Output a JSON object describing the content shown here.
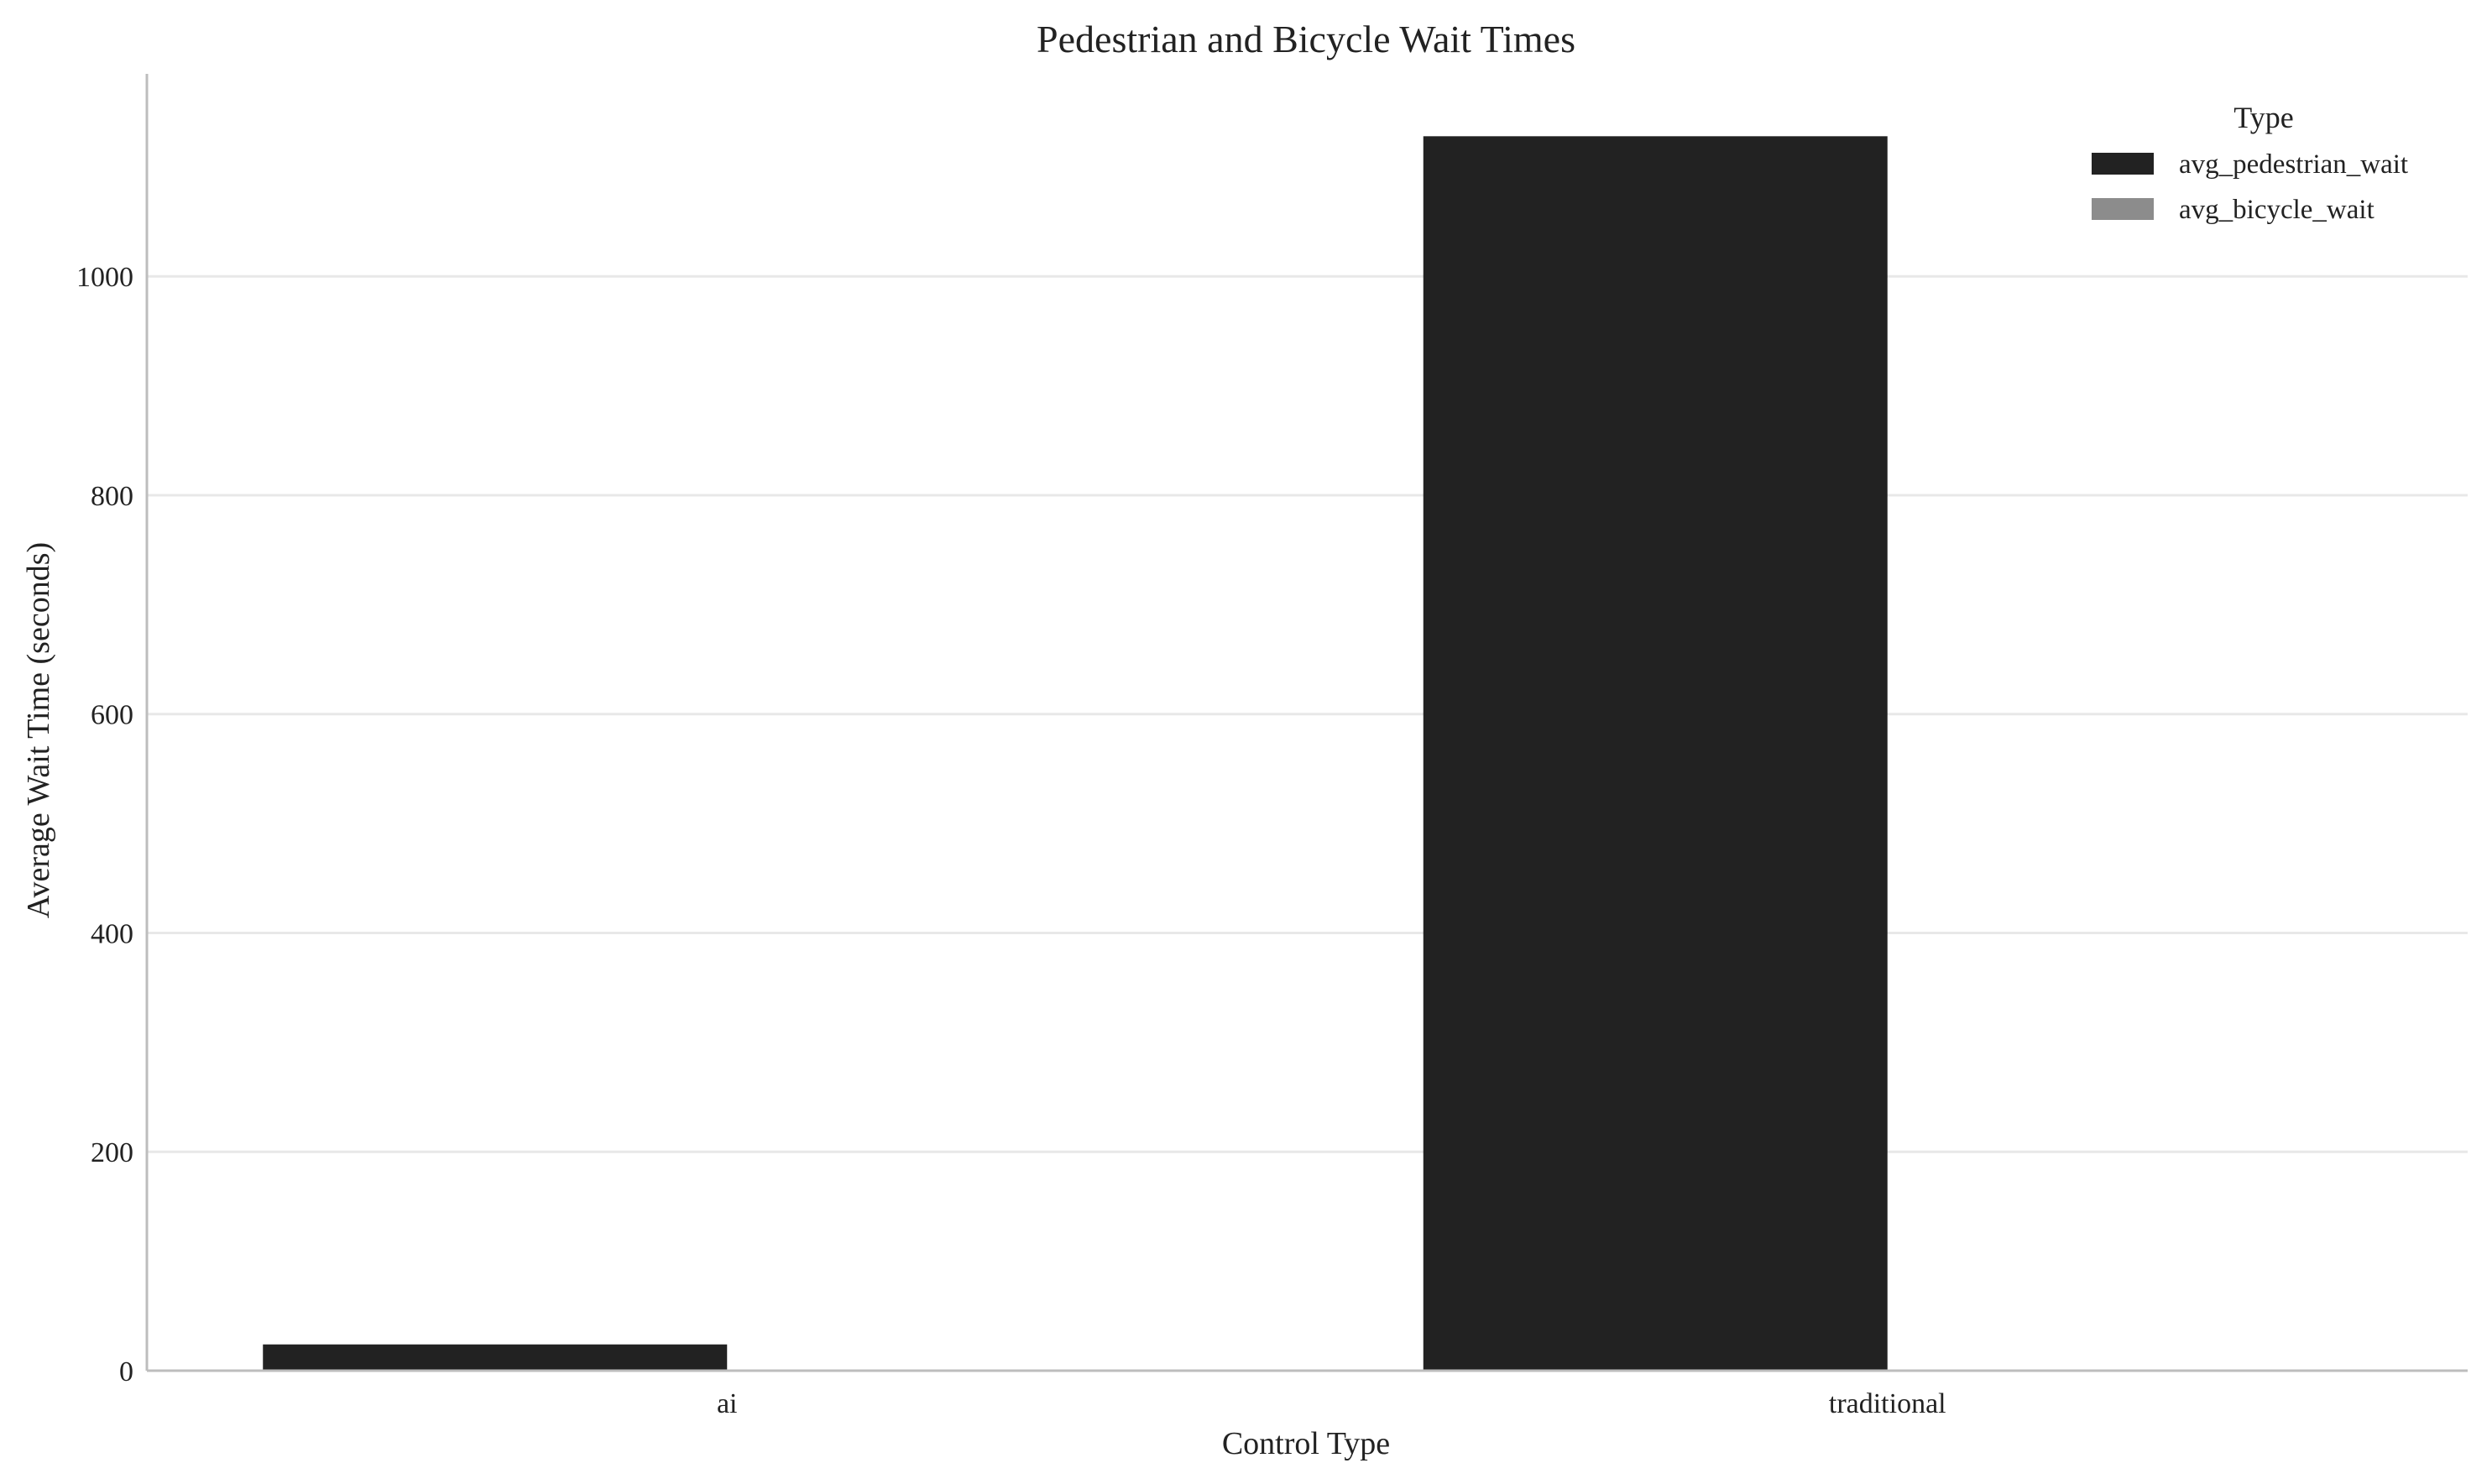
{
  "chart_data": {
    "type": "bar",
    "title": "Pedestrian and Bicycle Wait Times",
    "xlabel": "Control Type",
    "ylabel": "Average Wait Time (seconds)",
    "categories": [
      "ai",
      "traditional"
    ],
    "series": [
      {
        "name": "avg_pedestrian_wait",
        "values": [
          24,
          1128
        ],
        "color": "#222222"
      },
      {
        "name": "avg_bicycle_wait",
        "values": [
          0,
          0
        ],
        "color": "#8c8c8c"
      }
    ],
    "ylim": [
      0,
      1185
    ],
    "yticks": [
      0,
      200,
      400,
      600,
      800,
      1000
    ],
    "grid": true,
    "legend": {
      "title": "Type",
      "placement": "top-right"
    }
  }
}
